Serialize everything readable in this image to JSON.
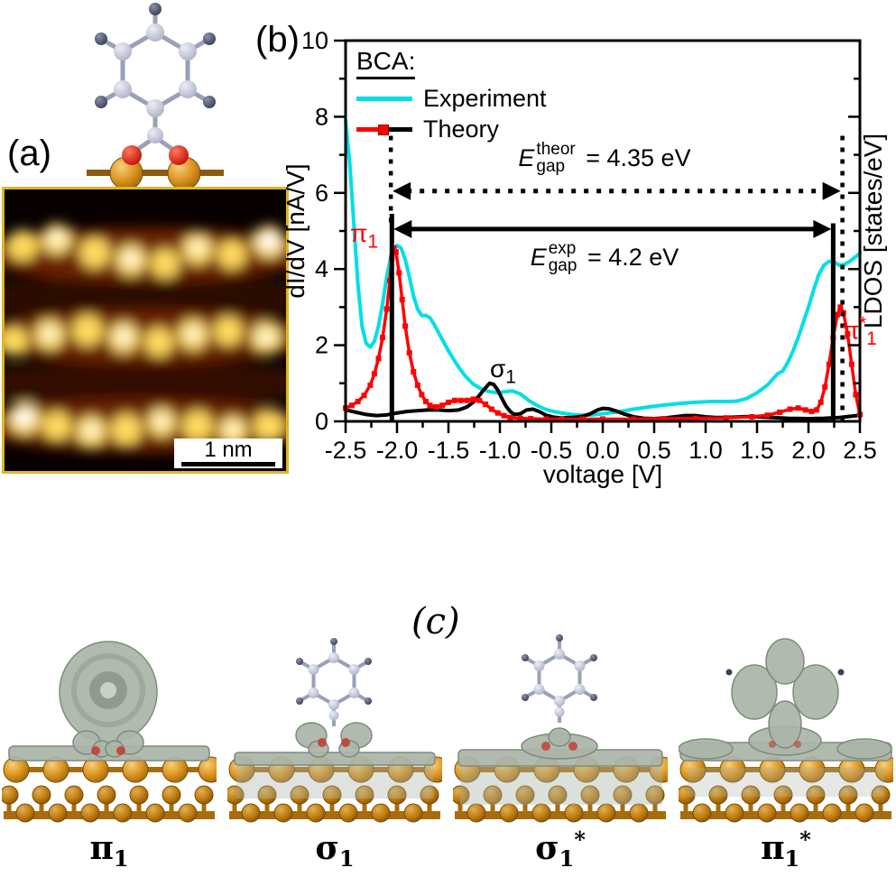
{
  "figure": {
    "panel_a_label": "(a)",
    "panel_b_label": "(b)",
    "panel_c_label": "(c)",
    "stm_scale_bar": "1 nm",
    "orbital_labels": [
      {
        "base": "π",
        "sub": "1",
        "sup": ""
      },
      {
        "base": "σ",
        "sub": "1",
        "sup": ""
      },
      {
        "base": "σ",
        "sub": "1",
        "sup": "*"
      },
      {
        "base": "π",
        "sub": "1",
        "sup": "*"
      }
    ]
  },
  "chart_data": {
    "type": "line",
    "xlabel": "voltage [V]",
    "ylabel_left": "dI/dV [nA/V]",
    "ylabel_right": "LDOS [states/eV]",
    "xlim": [
      -2.5,
      2.5
    ],
    "ylim": [
      0,
      10
    ],
    "xticks": {
      "major": [
        -2.5,
        -2.0,
        -1.5,
        -1.0,
        -0.5,
        0.0,
        0.5,
        1.0,
        1.5,
        2.0,
        2.5
      ],
      "labels": [
        "-2.5",
        "-2.0",
        "-1.5",
        "-1.0",
        "-0.5",
        "0.0",
        "0.5",
        "1.0",
        "1.5",
        "2.0",
        "2.5"
      ],
      "minor": [
        -2.25,
        -1.75,
        -1.25,
        -0.75,
        -0.25,
        0.25,
        0.75,
        1.25,
        1.75,
        2.25
      ]
    },
    "yticks": {
      "major": [
        0,
        2,
        4,
        6,
        8,
        10
      ],
      "labels": [
        "0",
        "2",
        "4",
        "6",
        "8",
        "10"
      ],
      "minor": [
        1,
        3,
        5,
        7,
        9
      ]
    },
    "legend": {
      "title": "BCA:",
      "entries": [
        {
          "label": "Experiment",
          "color": "#00dfe6"
        },
        {
          "label": "Theory",
          "colors": [
            "#ff0000",
            "#000000"
          ]
        }
      ]
    },
    "series": [
      {
        "name": "Experiment",
        "color": "#00dfe6",
        "x": [
          -2.5,
          -2.46,
          -2.42,
          -2.38,
          -2.34,
          -2.3,
          -2.26,
          -2.22,
          -2.18,
          -2.14,
          -2.1,
          -2.05,
          -2.0,
          -1.96,
          -1.92,
          -1.88,
          -1.84,
          -1.8,
          -1.76,
          -1.72,
          -1.68,
          -1.64,
          -1.58,
          -1.5,
          -1.42,
          -1.34,
          -1.26,
          -1.18,
          -1.1,
          -1.02,
          -0.95,
          -0.88,
          -0.8,
          -0.72,
          -0.64,
          -0.56,
          -0.48,
          -0.4,
          -0.3,
          -0.2,
          -0.1,
          0,
          0.15,
          0.3,
          0.45,
          0.6,
          0.75,
          0.9,
          1.05,
          1.2,
          1.3,
          1.4,
          1.5,
          1.6,
          1.65,
          1.7,
          1.75,
          1.8,
          1.85,
          1.9,
          1.95,
          2.0,
          2.05,
          2.1,
          2.15,
          2.2,
          2.25,
          2.3,
          2.35,
          2.4,
          2.45,
          2.5
        ],
        "y": [
          7.9,
          6.8,
          5.2,
          3.6,
          2.5,
          2.05,
          1.95,
          2.1,
          2.5,
          3.1,
          3.8,
          4.45,
          4.62,
          4.55,
          4.25,
          3.8,
          3.3,
          2.95,
          2.78,
          2.78,
          2.72,
          2.55,
          2.25,
          1.85,
          1.5,
          1.2,
          0.98,
          0.85,
          0.78,
          0.75,
          0.78,
          0.8,
          0.72,
          0.55,
          0.42,
          0.32,
          0.26,
          0.22,
          0.18,
          0.16,
          0.17,
          0.2,
          0.25,
          0.32,
          0.38,
          0.43,
          0.47,
          0.5,
          0.52,
          0.52,
          0.53,
          0.6,
          0.75,
          0.95,
          1.1,
          1.25,
          1.32,
          1.55,
          1.85,
          2.2,
          2.6,
          3.0,
          3.45,
          3.85,
          4.1,
          4.2,
          4.18,
          4.1,
          4.12,
          4.2,
          4.3,
          4.42
        ]
      },
      {
        "name": "Theory sigma",
        "color": "#000000",
        "x": [
          -2.5,
          -2.4,
          -2.3,
          -2.2,
          -2.1,
          -2.0,
          -1.9,
          -1.8,
          -1.7,
          -1.6,
          -1.5,
          -1.4,
          -1.32,
          -1.26,
          -1.2,
          -1.15,
          -1.1,
          -1.06,
          -1.02,
          -0.98,
          -0.94,
          -0.9,
          -0.86,
          -0.8,
          -0.74,
          -0.68,
          -0.62,
          -0.55,
          -0.48,
          -0.4,
          -0.3,
          -0.2,
          -0.12,
          -0.05,
          0,
          0.06,
          0.12,
          0.2,
          0.3,
          0.4,
          0.5,
          0.6,
          0.7,
          0.8,
          0.9,
          1.0,
          1.1,
          1.2,
          1.35,
          1.5,
          1.65,
          1.8,
          2.0,
          2.15,
          2.3,
          2.4,
          2.5
        ],
        "y": [
          0.3,
          0.24,
          0.18,
          0.15,
          0.17,
          0.22,
          0.26,
          0.28,
          0.3,
          0.3,
          0.28,
          0.3,
          0.38,
          0.5,
          0.68,
          0.85,
          1.0,
          0.97,
          0.82,
          0.6,
          0.4,
          0.26,
          0.18,
          0.2,
          0.3,
          0.32,
          0.26,
          0.16,
          0.11,
          0.09,
          0.1,
          0.13,
          0.2,
          0.3,
          0.34,
          0.33,
          0.28,
          0.2,
          0.12,
          0.08,
          0.07,
          0.09,
          0.12,
          0.15,
          0.15,
          0.12,
          0.1,
          0.1,
          0.12,
          0.12,
          0.1,
          0.08,
          0.07,
          0.08,
          0.1,
          0.13,
          0.16
        ]
      },
      {
        "name": "Theory pi",
        "color": "#ff0000",
        "marker": "square",
        "x": [
          -2.5,
          -2.44,
          -2.38,
          -2.32,
          -2.26,
          -2.22,
          -2.18,
          -2.14,
          -2.1,
          -2.07,
          -2.05,
          -2.03,
          -2.01,
          -1.98,
          -1.95,
          -1.92,
          -1.88,
          -1.84,
          -1.8,
          -1.76,
          -1.72,
          -1.68,
          -1.62,
          -1.56,
          -1.5,
          -1.44,
          -1.38,
          -1.32,
          -1.26,
          -1.2,
          -1.14,
          -1.08,
          -1.02,
          -0.96,
          -0.9,
          -0.8,
          -0.7,
          -0.55,
          -0.4,
          -0.2,
          0,
          0.3,
          0.6,
          0.9,
          1.2,
          1.45,
          1.6,
          1.72,
          1.82,
          1.9,
          1.97,
          2.03,
          2.08,
          2.12,
          2.16,
          2.2,
          2.24,
          2.28,
          2.31,
          2.34,
          2.38,
          2.42,
          2.46,
          2.5
        ],
        "y": [
          0.35,
          0.42,
          0.52,
          0.68,
          0.95,
          1.25,
          1.65,
          2.2,
          2.95,
          3.7,
          4.3,
          4.55,
          4.45,
          3.9,
          3.2,
          2.5,
          1.8,
          1.3,
          0.95,
          0.7,
          0.52,
          0.42,
          0.38,
          0.42,
          0.5,
          0.55,
          0.55,
          0.55,
          0.58,
          0.55,
          0.45,
          0.32,
          0.22,
          0.15,
          0.1,
          0.08,
          0.07,
          0.06,
          0.06,
          0.06,
          0.06,
          0.06,
          0.07,
          0.08,
          0.09,
          0.12,
          0.16,
          0.24,
          0.32,
          0.35,
          0.3,
          0.26,
          0.3,
          0.5,
          0.9,
          1.5,
          2.2,
          2.8,
          3.0,
          2.85,
          2.3,
          1.5,
          0.7,
          0.18
        ]
      }
    ],
    "peak_labels": [
      {
        "base": "π",
        "sub": "1",
        "sup": "",
        "color": "#ff0000"
      },
      {
        "base": "σ",
        "sub": "1",
        "sup": "",
        "color": "#000000"
      },
      {
        "base": "π",
        "sub": "1",
        "sup": "*",
        "color": "#ff0000"
      }
    ],
    "gap_annotations": [
      {
        "style": "dotted",
        "y": 6.05,
        "x1": -2.06,
        "x2": 2.33,
        "label": {
          "base": "E",
          "sup": "theor",
          "sub": "gap",
          "rest": " = 4.35 eV"
        }
      },
      {
        "style": "solid",
        "y": 5.05,
        "x1": -2.05,
        "x2": 2.24,
        "label": {
          "base": "E",
          "sup": "exp",
          "sub": "gap",
          "rest": " = 4.2 eV"
        }
      }
    ],
    "vlines": [
      {
        "x": -2.06,
        "style": "dotted",
        "y_from": 7.5,
        "y_to": 5.2
      },
      {
        "x": -2.05,
        "style": "solid",
        "y_from": 5.45,
        "y_to": 0
      },
      {
        "x": 2.24,
        "style": "solid",
        "y_from": 5.2,
        "y_to": 0
      },
      {
        "x": 2.33,
        "style": "dotted",
        "y_from": 7.5,
        "y_to": 0
      }
    ]
  }
}
